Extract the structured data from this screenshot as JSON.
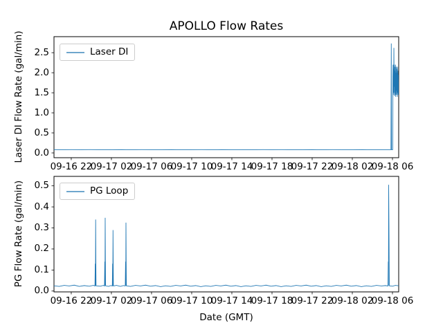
{
  "figure": {
    "title": "APOLLO Flow Rates",
    "background_color": "#ffffff",
    "line_color": "#1f77b4",
    "legend_line_color": "#6ea6cd"
  },
  "chart_data": [
    {
      "type": "line",
      "ylabel": "Laser DI Flow Rate (gal/min)",
      "xlabel": "",
      "legend": {
        "position": "upper left",
        "entries": [
          "Laser DI"
        ]
      },
      "color": "#1f77b4",
      "grid": false,
      "x_unit": "hours since 09-16 20:00 GMT",
      "xlim": [
        0.28,
        34.62
      ],
      "ylim": [
        -0.12,
        2.9
      ],
      "x_ticks": [
        2,
        6,
        10,
        14,
        18,
        22,
        26,
        30,
        34
      ],
      "x_tick_labels": [
        "09-16 22",
        "09-17 02",
        "09-17 06",
        "09-17 10",
        "09-17 14",
        "09-17 18",
        "09-17 22",
        "09-18 02",
        "09-18 06"
      ],
      "y_ticks": [
        0.0,
        0.5,
        1.0,
        1.5,
        2.0,
        2.5
      ],
      "y_tick_labels": [
        "0.0",
        "0.5",
        "1.0",
        "1.5",
        "2.0",
        "2.5"
      ],
      "series": [
        {
          "name": "Laser DI",
          "baseline_value": 0.08,
          "burst_range": [
            1.4,
            2.76
          ],
          "points": [
            [
              0.28,
              0.08
            ],
            [
              1,
              0.078
            ],
            [
              2,
              0.081
            ],
            [
              3,
              0.079
            ],
            [
              4,
              0.082
            ],
            [
              5,
              0.078
            ],
            [
              6,
              0.08
            ],
            [
              7,
              0.082
            ],
            [
              8,
              0.078
            ],
            [
              9,
              0.081
            ],
            [
              10,
              0.079
            ],
            [
              11,
              0.08
            ],
            [
              12,
              0.082
            ],
            [
              13,
              0.078
            ],
            [
              14,
              0.08
            ],
            [
              15,
              0.081
            ],
            [
              16,
              0.078
            ],
            [
              17,
              0.082
            ],
            [
              18,
              0.079
            ],
            [
              19,
              0.08
            ],
            [
              20,
              0.078
            ],
            [
              21,
              0.082
            ],
            [
              22,
              0.079
            ],
            [
              23,
              0.081
            ],
            [
              24,
              0.078
            ],
            [
              25,
              0.08
            ],
            [
              26,
              0.082
            ],
            [
              27,
              0.078
            ],
            [
              28,
              0.081
            ],
            [
              29,
              0.079
            ],
            [
              30,
              0.08
            ],
            [
              31,
              0.082
            ],
            [
              32,
              0.078
            ],
            [
              33,
              0.08
            ],
            [
              33.85,
              0.08
            ],
            [
              33.88,
              2.73
            ],
            [
              33.91,
              0.08
            ],
            [
              34.02,
              0.08
            ],
            [
              34.04,
              1.9
            ],
            [
              34.06,
              2.2
            ],
            [
              34.08,
              1.45
            ],
            [
              34.1,
              2.1
            ],
            [
              34.12,
              1.5
            ],
            [
              34.14,
              2.62
            ],
            [
              34.16,
              1.65
            ],
            [
              34.18,
              2.2
            ],
            [
              34.2,
              1.42
            ],
            [
              34.22,
              2.05
            ],
            [
              34.24,
              1.5
            ],
            [
              34.26,
              2.15
            ],
            [
              34.28,
              1.45
            ],
            [
              34.3,
              2.2
            ],
            [
              34.32,
              1.4
            ],
            [
              34.34,
              2.0
            ],
            [
              34.36,
              1.55
            ],
            [
              34.38,
              2.15
            ],
            [
              34.4,
              1.45
            ],
            [
              34.42,
              2.1
            ],
            [
              34.44,
              1.5
            ],
            [
              34.46,
              2.0
            ],
            [
              34.48,
              1.4
            ],
            [
              34.5,
              2.15
            ],
            [
              34.52,
              1.5
            ],
            [
              34.54,
              2.05
            ],
            [
              34.56,
              1.45
            ],
            [
              34.58,
              1.95
            ],
            [
              34.6,
              1.5
            ],
            [
              34.62,
              1.45
            ]
          ]
        }
      ]
    },
    {
      "type": "line",
      "ylabel": "PG Flow Rate (gal/min)",
      "xlabel": "Date (GMT)",
      "legend": {
        "position": "upper left",
        "entries": [
          "PG Loop"
        ]
      },
      "color": "#1f77b4",
      "grid": false,
      "x_unit": "hours since 09-16 20:00 GMT",
      "xlim": [
        0.28,
        34.62
      ],
      "ylim": [
        -0.004,
        0.545
      ],
      "x_ticks": [
        2,
        6,
        10,
        14,
        18,
        22,
        26,
        30,
        34
      ],
      "x_tick_labels": [
        "09-16 22",
        "09-17 02",
        "09-17 06",
        "09-17 10",
        "09-17 14",
        "09-17 18",
        "09-17 22",
        "09-18 02",
        "09-18 06"
      ],
      "y_ticks": [
        0.0,
        0.1,
        0.2,
        0.3,
        0.4,
        0.5
      ],
      "y_tick_labels": [
        "0.0",
        "0.1",
        "0.2",
        "0.3",
        "0.4",
        "0.5"
      ],
      "series": [
        {
          "name": "PG Loop",
          "baseline_value": 0.025,
          "spike_peaks": [
            0.34,
            0.348,
            0.29,
            0.325,
            0.505
          ],
          "points": [
            [
              0.28,
              0.025
            ],
            [
              0.8,
              0.022
            ],
            [
              1.3,
              0.027
            ],
            [
              1.8,
              0.024
            ],
            [
              2.3,
              0.028
            ],
            [
              2.8,
              0.022
            ],
            [
              3.3,
              0.026
            ],
            [
              3.8,
              0.023
            ],
            [
              4.2,
              0.027
            ],
            [
              4.36,
              0.024
            ],
            [
              4.39,
              0.13
            ],
            [
              4.41,
              0.025
            ],
            [
              4.43,
              0.34
            ],
            [
              4.45,
              0.15
            ],
            [
              4.47,
              0.025
            ],
            [
              4.9,
              0.023
            ],
            [
              5.2,
              0.027
            ],
            [
              5.31,
              0.024
            ],
            [
              5.34,
              0.14
            ],
            [
              5.36,
              0.026
            ],
            [
              5.38,
              0.348
            ],
            [
              5.4,
              0.15
            ],
            [
              5.42,
              0.025
            ],
            [
              5.7,
              0.022
            ],
            [
              5.95,
              0.026
            ],
            [
              6.09,
              0.024
            ],
            [
              6.12,
              0.13
            ],
            [
              6.14,
              0.025
            ],
            [
              6.16,
              0.29
            ],
            [
              6.18,
              0.13
            ],
            [
              6.2,
              0.024
            ],
            [
              6.5,
              0.027
            ],
            [
              6.9,
              0.022
            ],
            [
              7.2,
              0.026
            ],
            [
              7.38,
              0.024
            ],
            [
              7.41,
              0.14
            ],
            [
              7.43,
              0.026
            ],
            [
              7.45,
              0.325
            ],
            [
              7.47,
              0.14
            ],
            [
              7.49,
              0.025
            ],
            [
              7.9,
              0.022
            ],
            [
              8.4,
              0.027
            ],
            [
              8.9,
              0.024
            ],
            [
              9.4,
              0.028
            ],
            [
              9.9,
              0.023
            ],
            [
              10.4,
              0.026
            ],
            [
              10.9,
              0.021
            ],
            [
              11.4,
              0.025
            ],
            [
              11.9,
              0.022
            ],
            [
              12.4,
              0.027
            ],
            [
              12.9,
              0.024
            ],
            [
              13.4,
              0.028
            ],
            [
              13.9,
              0.023
            ],
            [
              14.4,
              0.026
            ],
            [
              14.9,
              0.021
            ],
            [
              15.4,
              0.025
            ],
            [
              15.9,
              0.022
            ],
            [
              16.4,
              0.027
            ],
            [
              16.9,
              0.024
            ],
            [
              17.4,
              0.028
            ],
            [
              17.9,
              0.023
            ],
            [
              18.4,
              0.026
            ],
            [
              18.9,
              0.021
            ],
            [
              19.4,
              0.025
            ],
            [
              19.9,
              0.022
            ],
            [
              20.4,
              0.027
            ],
            [
              20.9,
              0.024
            ],
            [
              21.4,
              0.028
            ],
            [
              21.9,
              0.023
            ],
            [
              22.4,
              0.026
            ],
            [
              22.9,
              0.021
            ],
            [
              23.4,
              0.025
            ],
            [
              23.9,
              0.022
            ],
            [
              24.4,
              0.027
            ],
            [
              24.9,
              0.024
            ],
            [
              25.4,
              0.028
            ],
            [
              25.9,
              0.023
            ],
            [
              26.4,
              0.026
            ],
            [
              26.9,
              0.021
            ],
            [
              27.4,
              0.025
            ],
            [
              27.9,
              0.022
            ],
            [
              28.4,
              0.027
            ],
            [
              28.9,
              0.024
            ],
            [
              29.4,
              0.028
            ],
            [
              29.9,
              0.023
            ],
            [
              30.4,
              0.026
            ],
            [
              30.9,
              0.021
            ],
            [
              31.4,
              0.025
            ],
            [
              31.9,
              0.022
            ],
            [
              32.4,
              0.027
            ],
            [
              32.9,
              0.024
            ],
            [
              33.3,
              0.026
            ],
            [
              33.55,
              0.024
            ],
            [
              33.58,
              0.14
            ],
            [
              33.6,
              0.026
            ],
            [
              33.62,
              0.505
            ],
            [
              33.65,
              0.3
            ],
            [
              33.67,
              0.14
            ],
            [
              33.69,
              0.025
            ],
            [
              34.0,
              0.023
            ],
            [
              34.3,
              0.027
            ],
            [
              34.62,
              0.025
            ]
          ]
        }
      ]
    }
  ]
}
